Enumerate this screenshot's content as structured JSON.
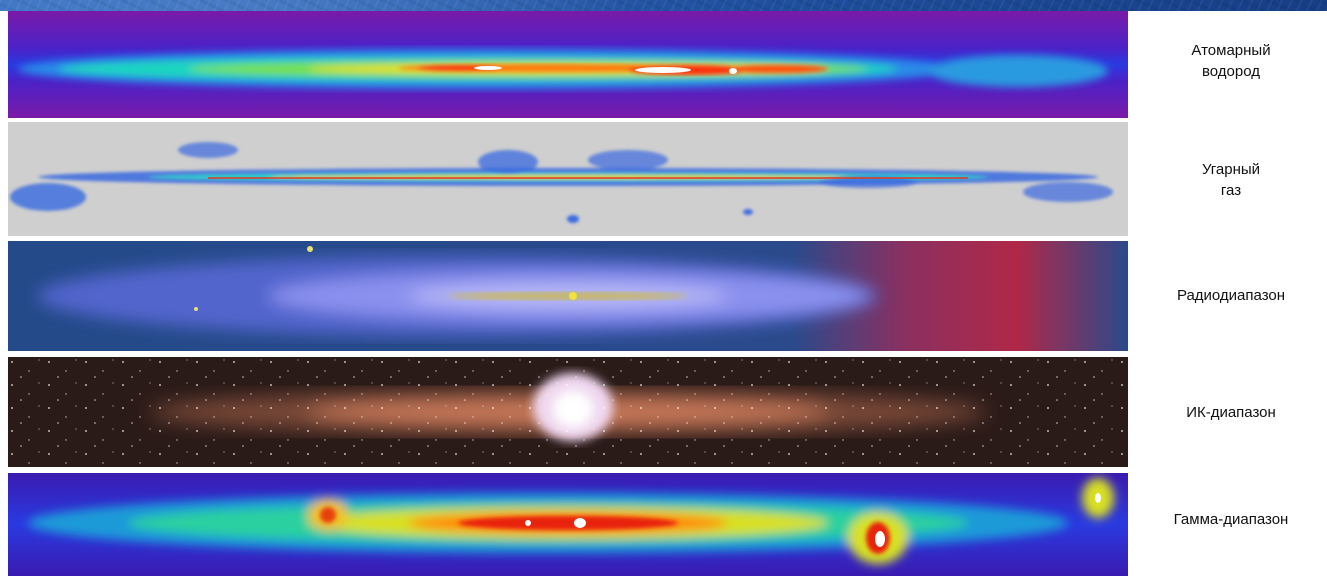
{
  "bands": [
    {
      "id": "hi",
      "label": "Атомарный\nводород"
    },
    {
      "id": "co",
      "label": "Угарный\nгаз"
    },
    {
      "id": "radio",
      "label": "Радиодиапазон"
    },
    {
      "id": "ir",
      "label": "ИК-диапазон"
    },
    {
      "id": "gamma",
      "label": "Гамма-диапазон"
    }
  ],
  "colors": {
    "slide_background": "#2a5db0",
    "plate": "#ffffff",
    "label_text": "#111111"
  }
}
